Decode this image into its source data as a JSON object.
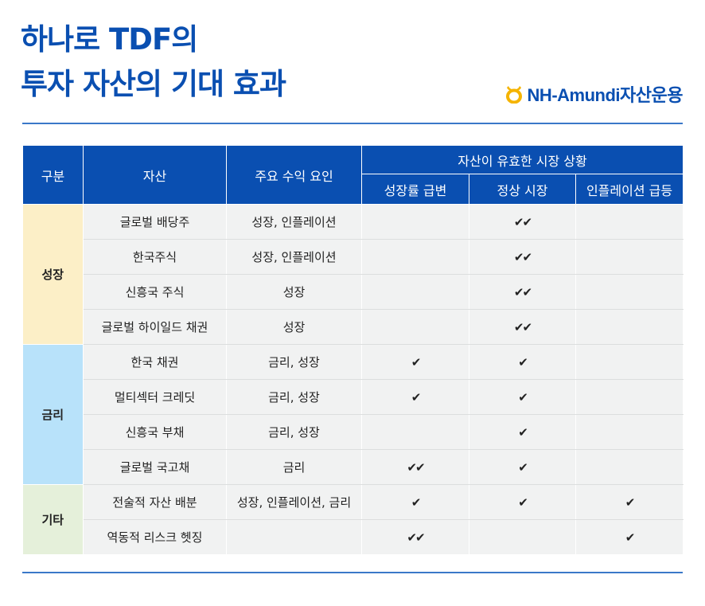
{
  "title": {
    "line1": "하나로 TDF의",
    "line2": "투자 자산의 기대 효과"
  },
  "brand": {
    "name": "NH-Amundi자산운용",
    "logo_icon": "nh-amundi-logo-icon",
    "color": "#0a4fb1"
  },
  "colors": {
    "header_bg": "#0a4fb1",
    "growth_bg": "#fcefc7",
    "rate_bg": "#b8e2fa",
    "etc_bg": "#e5f0da",
    "cell_bg": "#f1f2f2"
  },
  "table": {
    "headers": {
      "category": "구분",
      "asset": "자산",
      "factor": "주요 수익 요인",
      "situation": "자산이 유효한 시장 상황",
      "sub": [
        "성장률 급변",
        "정상 시장",
        "인플레이션 급등"
      ]
    },
    "groups": [
      {
        "label": "성장",
        "color": "#fcefc7",
        "rows": [
          {
            "asset": "글로벌 배당주",
            "factor": "성장, 인플레이션",
            "growth_shock": "",
            "normal": "✔✔",
            "inflation": ""
          },
          {
            "asset": "한국주식",
            "factor": "성장, 인플레이션",
            "growth_shock": "",
            "normal": "✔✔",
            "inflation": ""
          },
          {
            "asset": "신흥국 주식",
            "factor": "성장",
            "growth_shock": "",
            "normal": "✔✔",
            "inflation": ""
          },
          {
            "asset": "글로벌 하이일드 채권",
            "factor": "성장",
            "growth_shock": "",
            "normal": "✔✔",
            "inflation": ""
          }
        ]
      },
      {
        "label": "금리",
        "color": "#b8e2fa",
        "rows": [
          {
            "asset": "한국 채권",
            "factor": "금리, 성장",
            "growth_shock": "✔",
            "normal": "✔",
            "inflation": ""
          },
          {
            "asset": "멀티섹터 크레딧",
            "factor": "금리, 성장",
            "growth_shock": "✔",
            "normal": "✔",
            "inflation": ""
          },
          {
            "asset": "신흥국 부채",
            "factor": "금리, 성장",
            "growth_shock": "",
            "normal": "✔",
            "inflation": ""
          },
          {
            "asset": "글로벌 국고채",
            "factor": "금리",
            "growth_shock": "✔✔",
            "normal": "✔",
            "inflation": ""
          }
        ]
      },
      {
        "label": "기타",
        "color": "#e5f0da",
        "rows": [
          {
            "asset": "전술적 자산 배분",
            "factor": "성장, 인플레이션, 금리",
            "growth_shock": "✔",
            "normal": "✔",
            "inflation": "✔"
          },
          {
            "asset": "역동적 리스크 헷징",
            "factor": "",
            "growth_shock": "✔✔",
            "normal": "",
            "inflation": "✔"
          }
        ]
      }
    ]
  }
}
